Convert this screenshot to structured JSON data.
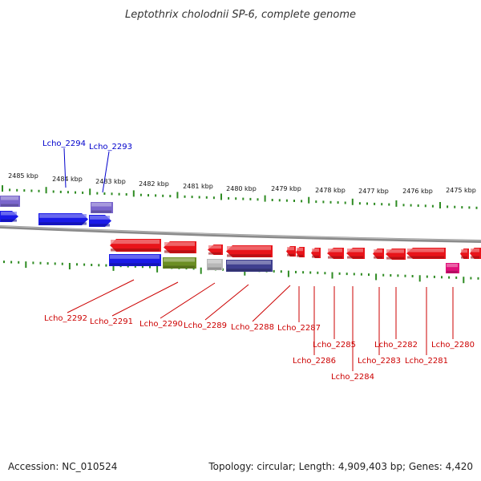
{
  "title": "Leptothrix cholodnii SP-6, complete genome",
  "footer": {
    "accession": "Accession: NC_010524",
    "summary": "Topology: circular; Length: 4,909,403 bp; Genes: 4,420"
  },
  "colors": {
    "tick": "#2e8b22",
    "backbone": "#888888",
    "label_top": "#0000cc",
    "label_bottom": "#cc0000",
    "red": "#e8141a",
    "blue": "#1a1ae8",
    "purple": "#7a66cc",
    "olive": "#6b8e23",
    "grey": "#b8b8b8",
    "navy": "#3f3f8f",
    "magenta": "#e0107a"
  },
  "kbp_labels": [
    "2485 kbp",
    "2484 kbp",
    "2483 kbp",
    "2482 kbp",
    "2481 kbp",
    "2480 kbp",
    "2479 kbp",
    "2478 kbp",
    "2477 kbp",
    "2476 kbp",
    "2475 kbp"
  ],
  "top_genes": [
    "Lcho_2294",
    "Lcho_2293"
  ],
  "bottom_genes": [
    "Lcho_2292",
    "Lcho_2291",
    "Lcho_2290",
    "Lcho_2289",
    "Lcho_2288",
    "Lcho_2287",
    "Lcho_2286",
    "Lcho_2285",
    "Lcho_2284",
    "Lcho_2283",
    "Lcho_2282",
    "Lcho_2281",
    "Lcho_2280"
  ]
}
